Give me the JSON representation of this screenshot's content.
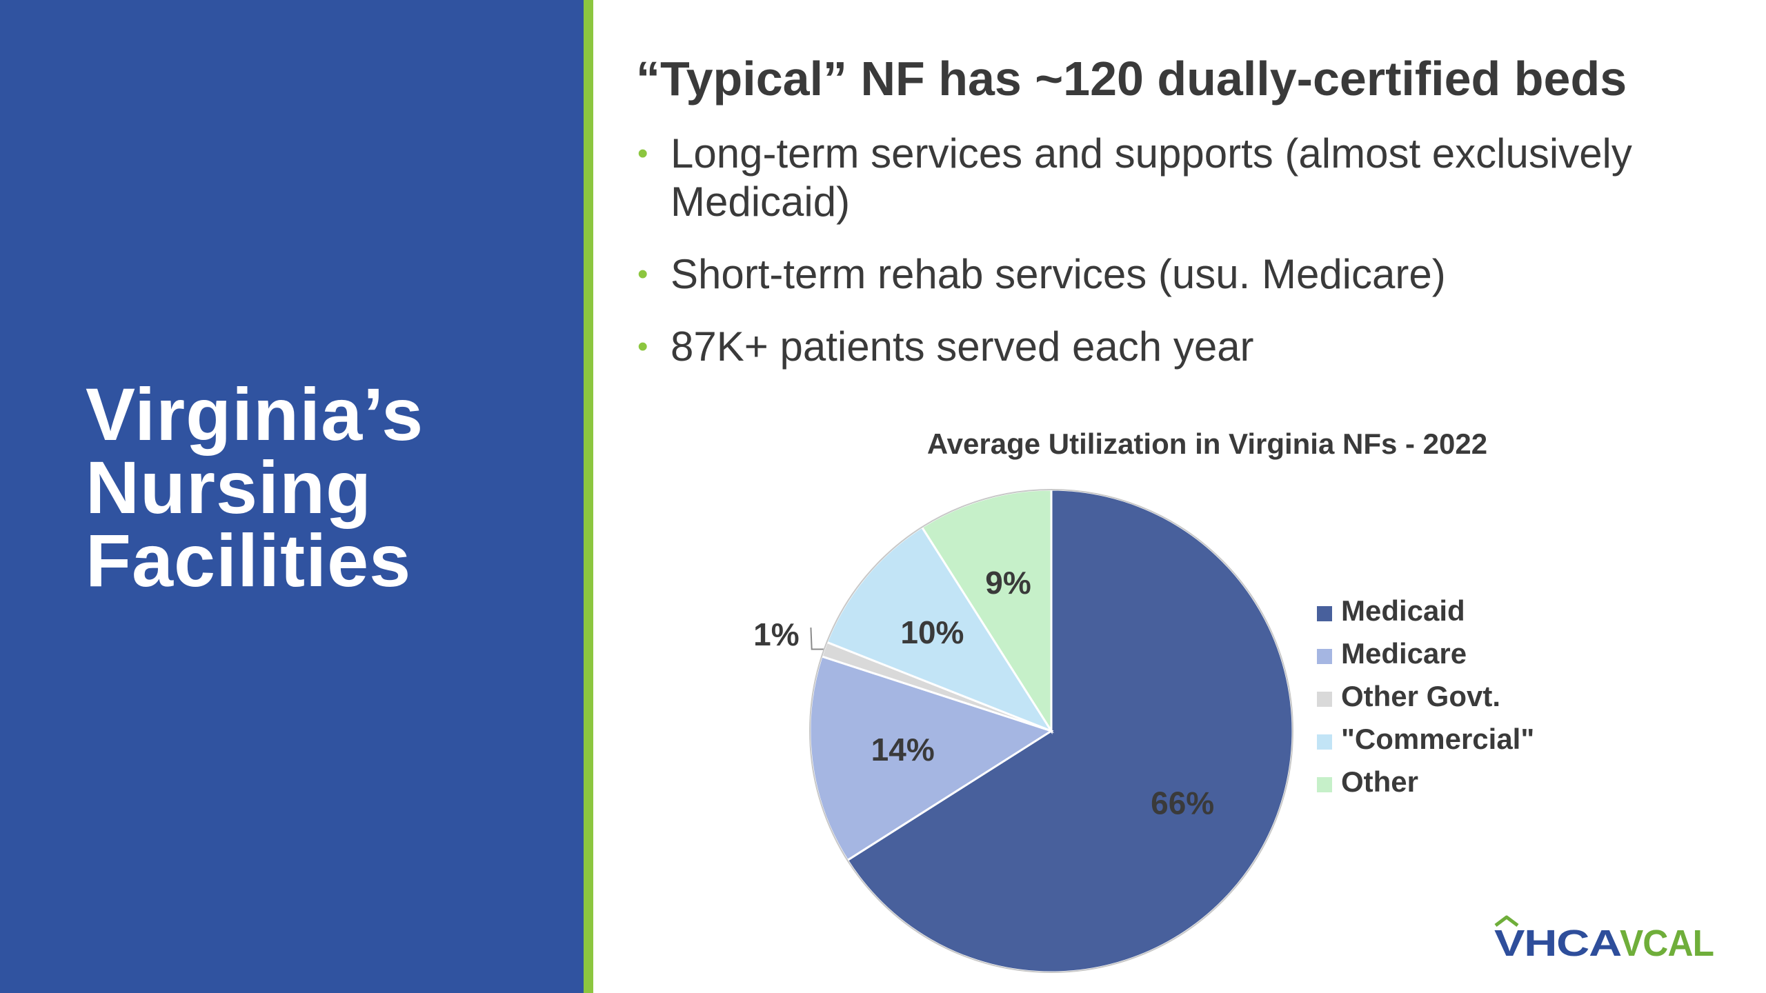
{
  "slide": {
    "section_title_lines": [
      "Virginia’s",
      "Nursing",
      "Facilities"
    ],
    "heading": "“Typical” NF has ~120 dually-certified beds",
    "bullets": [
      "Long-term services and supports (almost exclusively Medicaid)",
      "Short-term rehab services (usu. Medicare)",
      "87K+ patients served each year"
    ],
    "logo_text": "VHCAVCAL"
  },
  "colors": {
    "left_panel": "#3053a0",
    "accent": "#8cc63f",
    "text": "#3a3a3a",
    "logo_vhca": "#2e4e9b",
    "logo_vcal": "#6fae3a"
  },
  "chart_data": {
    "type": "pie",
    "title": "Average Utilization in Virginia NFs - 2022",
    "legend_position": "right",
    "slices": [
      {
        "name": "Medicaid",
        "value": 66,
        "label": "66%",
        "color": "#48609c"
      },
      {
        "name": "Medicare",
        "value": 14,
        "label": "14%",
        "color": "#a5b6e2"
      },
      {
        "name": "Other Govt.",
        "value": 1,
        "label": "1%",
        "color": "#d9d9d9"
      },
      {
        "name": "\"Commercial\"",
        "value": 10,
        "label": "10%",
        "color": "#c2e4f6"
      },
      {
        "name": "Other",
        "value": 9,
        "label": "9%",
        "color": "#c6f0c9"
      }
    ]
  }
}
